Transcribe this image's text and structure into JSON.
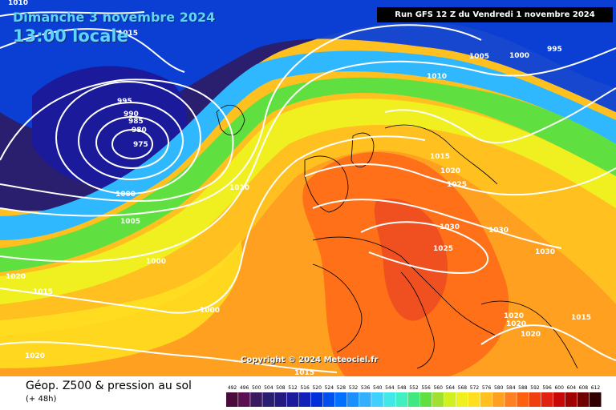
{
  "header": {
    "date": "Dimanche 3 novembre 2024",
    "time": "13:00 locale",
    "run": "Run GFS 12 Z du Vendredi 1 novembre 2024"
  },
  "copyright": "Copyright © 2024 Meteociel.fr",
  "legend": {
    "title": "Géop. Z500 & pression au sol",
    "subtitle": "(+ 48h)",
    "ticks": [
      "492",
      "496",
      "500",
      "504",
      "508",
      "512",
      "516",
      "520",
      "524",
      "528",
      "532",
      "536",
      "540",
      "544",
      "548",
      "552",
      "556",
      "560",
      "564",
      "568",
      "572",
      "576",
      "580",
      "584",
      "588",
      "592",
      "596",
      "600",
      "604",
      "608",
      "612"
    ],
    "colors": [
      "#4a0a3a",
      "#5a1050",
      "#3a1a5e",
      "#2a1e6e",
      "#221a80",
      "#1a1a9a",
      "#1020b8",
      "#0030d8",
      "#0050f0",
      "#0070ff",
      "#1a90ff",
      "#30b0ff",
      "#40d0ff",
      "#40e8e8",
      "#40f0c0",
      "#40e880",
      "#60e040",
      "#a0e030",
      "#d0f020",
      "#f0f020",
      "#ffe020",
      "#ffc020",
      "#ffa020",
      "#ff8020",
      "#ff6010",
      "#f04010",
      "#e02010",
      "#c80808",
      "#a00000",
      "#700000",
      "#300000"
    ]
  },
  "isobars": [
    {
      "label": "1010"
    },
    {
      "label": "1015"
    },
    {
      "label": "1005"
    },
    {
      "label": "1000"
    },
    {
      "label": "995"
    },
    {
      "label": "1010"
    },
    {
      "label": "995"
    },
    {
      "label": "990"
    },
    {
      "label": "985"
    },
    {
      "label": "980"
    },
    {
      "label": "975"
    },
    {
      "label": "1000"
    },
    {
      "label": "1005"
    },
    {
      "label": "1000"
    },
    {
      "label": "1010"
    },
    {
      "label": "1015"
    },
    {
      "label": "1020"
    },
    {
      "label": "1025"
    },
    {
      "label": "1030"
    },
    {
      "label": "1030"
    },
    {
      "label": "1025"
    },
    {
      "label": "1030"
    },
    {
      "label": "1020"
    },
    {
      "label": "1015"
    },
    {
      "label": "1000"
    },
    {
      "label": "1020"
    },
    {
      "label": "1020"
    },
    {
      "label": "1020"
    },
    {
      "label": "1015"
    },
    {
      "label": "1020"
    },
    {
      "label": "1015"
    }
  ]
}
